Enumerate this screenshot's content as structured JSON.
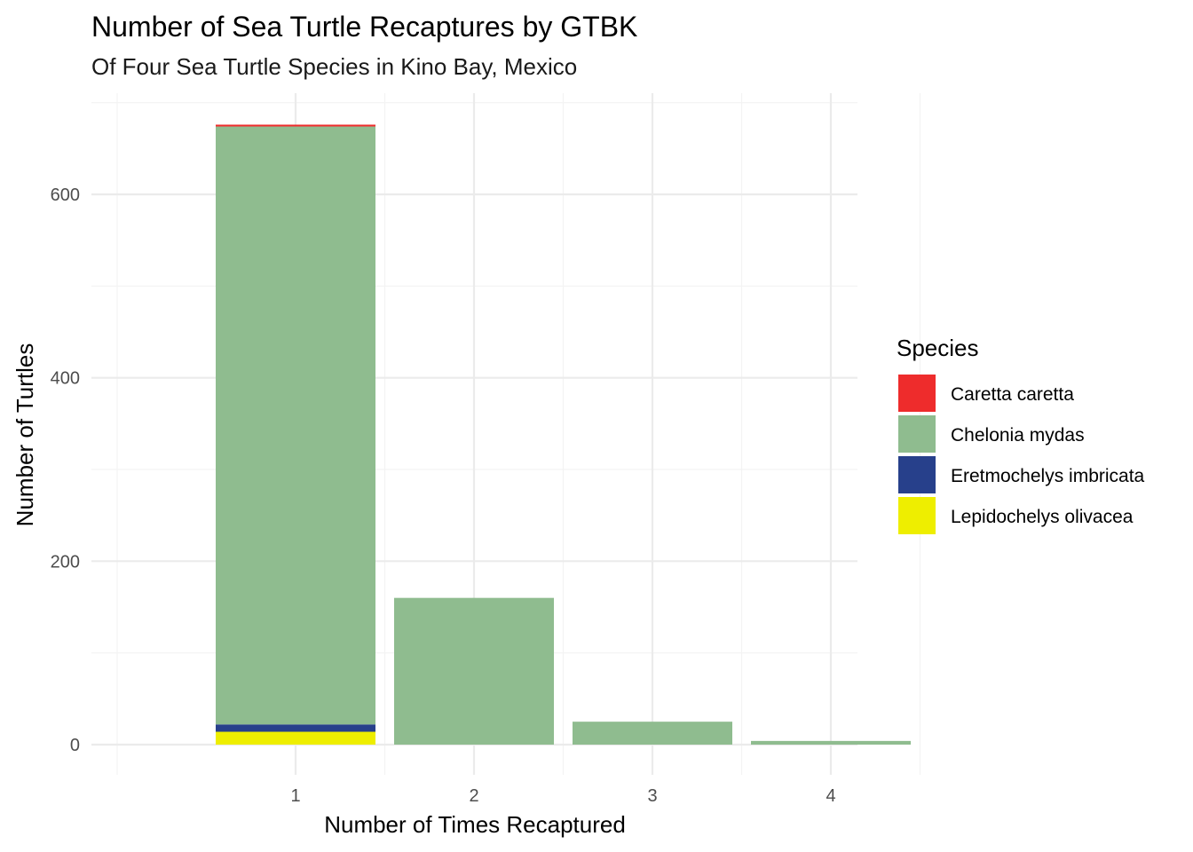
{
  "chart_data": {
    "type": "bar",
    "stacked": true,
    "title": "Number of Sea Turtle Recaptures by GTBK",
    "subtitle": "Of Four Sea Turtle Species in Kino Bay, Mexico",
    "xlabel": "Number of Times Recaptured",
    "ylabel": "Number of Turtles",
    "categories": [
      "1",
      "2",
      "3",
      "4"
    ],
    "yticks": [
      0,
      200,
      400,
      600
    ],
    "ylim": [
      -28,
      700
    ],
    "grid": true,
    "legend": {
      "title": "Species",
      "position": "right"
    },
    "series": [
      {
        "name": "Lepidochelys olivacea",
        "color": "#EEEE00",
        "values": [
          14,
          0,
          0,
          0
        ]
      },
      {
        "name": "Eretmochelys imbricata",
        "color": "#27408B",
        "values": [
          8,
          0,
          0,
          0
        ]
      },
      {
        "name": "Chelonia mydas",
        "color": "#8FBC8F",
        "values": [
          652,
          160,
          25,
          4
        ]
      },
      {
        "name": "Caretta caretta",
        "color": "#EE2C2C",
        "values": [
          2,
          0,
          0,
          0
        ]
      }
    ]
  }
}
